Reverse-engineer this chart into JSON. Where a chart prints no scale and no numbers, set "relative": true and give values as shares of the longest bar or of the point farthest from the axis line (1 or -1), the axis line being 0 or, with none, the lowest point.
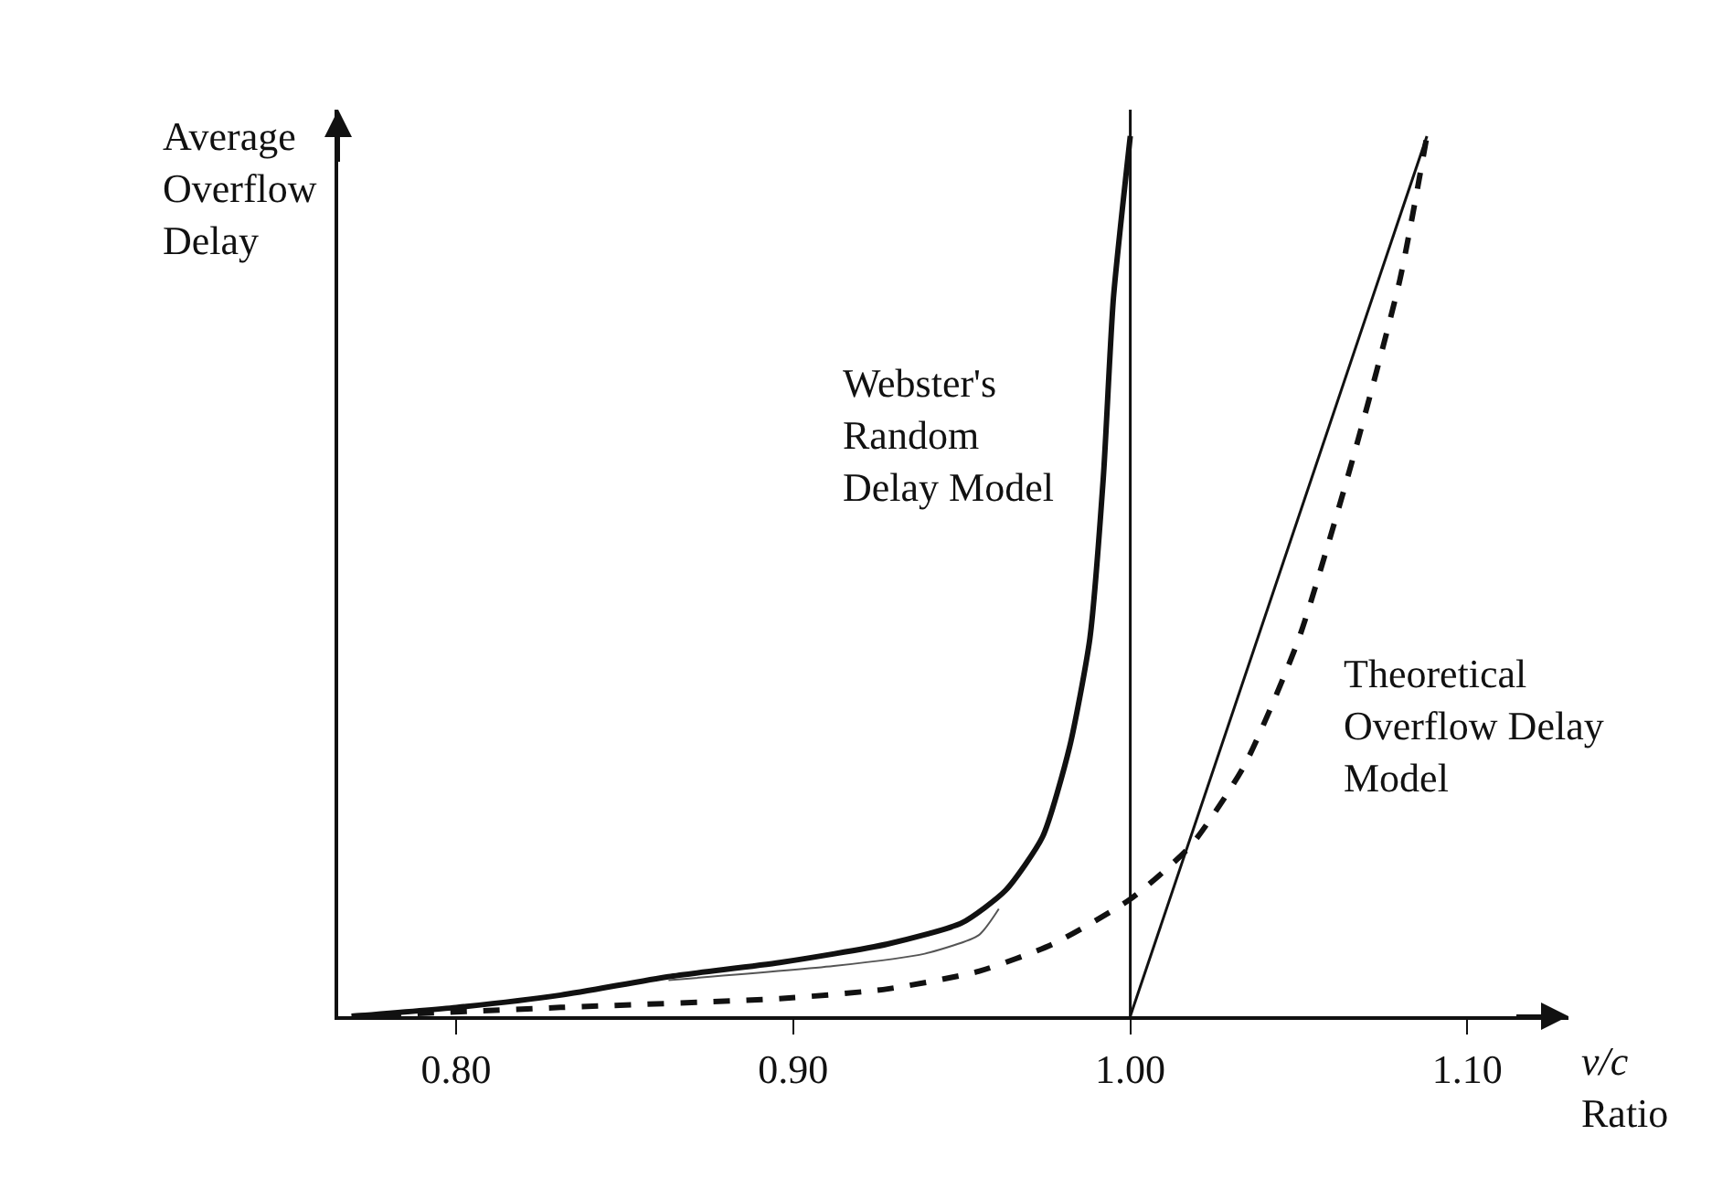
{
  "chart_data": {
    "type": "line",
    "relative": true,
    "xlabel": "v/c Ratio",
    "ylabel": "Average Overflow Delay",
    "xlim": [
      0.765,
      1.13
    ],
    "xticks": [
      {
        "value": 0.8,
        "label": "0.80"
      },
      {
        "value": 0.9,
        "label": "0.90"
      },
      {
        "value": 1.0,
        "label": "1.00"
      },
      {
        "value": 1.1,
        "label": "1.10"
      }
    ],
    "legend": false,
    "marker": "none",
    "series": [
      {
        "name": "Webster's Random Delay Model",
        "color": "#111111",
        "line_style": "solid",
        "x": [
          0.769,
          0.8,
          0.831,
          0.863,
          0.896,
          0.928,
          0.95,
          0.963,
          0.974,
          0.982,
          0.988,
          0.992,
          0.995,
          1.0
        ],
        "values": [
          0,
          0.01,
          0.024,
          0.045,
          0.061,
          0.082,
          0.106,
          0.143,
          0.204,
          0.306,
          0.429,
          0.612,
          0.816,
          1.0
        ]
      },
      {
        "color": "#111111",
        "line_style": "dashed",
        "x": [
          0.769,
          0.831,
          0.896,
          0.928,
          0.955,
          0.977,
          1.0,
          1.018,
          1.034,
          1.05,
          1.066,
          1.08,
          1.088
        ],
        "values": [
          0,
          0.01,
          0.02,
          0.031,
          0.051,
          0.082,
          0.133,
          0.194,
          0.286,
          0.429,
          0.633,
          0.837,
          1.0
        ]
      },
      {
        "name": "Theoretical Overflow Delay Model",
        "color": "#111111",
        "line_style": "solid",
        "x": [
          1.0,
          1.088
        ],
        "values": [
          0,
          1.0
        ]
      },
      {
        "color": "#555555",
        "line_style": "solid",
        "x": [
          0.863,
          0.912,
          0.939,
          0.955,
          0.961
        ],
        "values": [
          0.041,
          0.057,
          0.071,
          0.092,
          0.122
        ]
      }
    ],
    "ref_lines": [
      {
        "axis": "x",
        "value": 1.0,
        "color": "#111111",
        "line_style": "solid"
      }
    ]
  }
}
